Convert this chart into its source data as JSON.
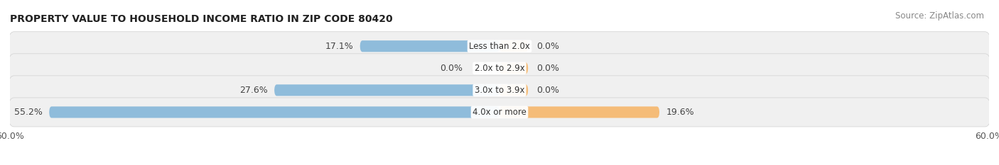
{
  "title": "PROPERTY VALUE TO HOUSEHOLD INCOME RATIO IN ZIP CODE 80420",
  "source": "Source: ZipAtlas.com",
  "categories": [
    "Less than 2.0x",
    "2.0x to 2.9x",
    "3.0x to 3.9x",
    "4.0x or more"
  ],
  "without_mortgage": [
    17.1,
    0.0,
    27.6,
    55.2
  ],
  "with_mortgage": [
    0.0,
    0.0,
    0.0,
    19.6
  ],
  "color_without": "#8fbcdb",
  "color_with": "#f5bc78",
  "bar_bg_color": "#e8e8e8",
  "xlim_left": -60,
  "xlim_right": 60,
  "title_fontsize": 10,
  "source_fontsize": 8.5,
  "label_fontsize": 9,
  "cat_fontsize": 8.5,
  "row_bg_color": "#f0f0f0",
  "row_border_color": "#d0d0d0"
}
